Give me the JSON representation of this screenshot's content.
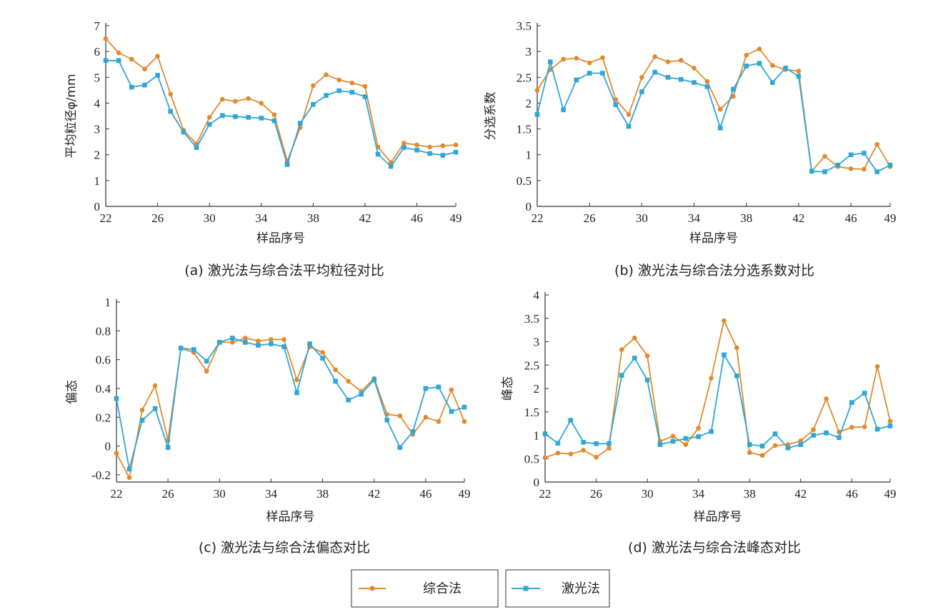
{
  "colors": {
    "comprehensive": "#e08a2c",
    "laser": "#2ea6d6"
  },
  "legend": {
    "comprehensive_label": "综合法",
    "laser_label": "激光法"
  },
  "chart_data": [
    {
      "type": "line",
      "caption": "(a) 激光法与综合法平均粒径对比",
      "ylabel": "平均粒径φ/mm",
      "xlabel": "样品序号",
      "xlim": [
        22,
        49
      ],
      "ylim": [
        0,
        7
      ],
      "xticks": [
        22,
        26,
        30,
        34,
        38,
        42,
        46,
        49
      ],
      "yticks": [
        0,
        1,
        2,
        3,
        4,
        5,
        6,
        7
      ],
      "ytick_labels": [
        "0",
        "1",
        "2",
        "3",
        "4",
        "5",
        "6",
        "7"
      ],
      "x": [
        22,
        23,
        24,
        25,
        26,
        27,
        28,
        29,
        30,
        31,
        32,
        33,
        34,
        35,
        36,
        37,
        38,
        39,
        40,
        41,
        42,
        43,
        44,
        45,
        46,
        47,
        48,
        49
      ],
      "series": [
        {
          "name": "综合法",
          "key": "comprehensive",
          "values": [
            6.5,
            5.95,
            5.7,
            5.32,
            5.82,
            4.35,
            2.95,
            2.42,
            3.45,
            4.15,
            4.07,
            4.18,
            4.0,
            3.55,
            1.75,
            3.05,
            4.68,
            5.1,
            4.9,
            4.78,
            4.65,
            2.3,
            1.7,
            2.45,
            2.38,
            2.3,
            2.35,
            2.38
          ]
        },
        {
          "name": "激光法",
          "key": "laser",
          "values": [
            5.65,
            5.65,
            4.62,
            4.7,
            5.08,
            3.68,
            2.88,
            2.28,
            3.18,
            3.52,
            3.48,
            3.45,
            3.42,
            3.32,
            1.62,
            3.22,
            3.95,
            4.3,
            4.48,
            4.42,
            4.25,
            2.02,
            1.55,
            2.28,
            2.18,
            2.05,
            1.98,
            2.1
          ]
        }
      ]
    },
    {
      "type": "line",
      "caption": "(b) 激光法与综合法分选系数对比",
      "ylabel": "分选系数",
      "xlabel": "样品序号",
      "xlim": [
        22,
        49
      ],
      "ylim": [
        0,
        3.5
      ],
      "xticks": [
        22,
        26,
        30,
        34,
        38,
        42,
        46,
        49
      ],
      "yticks": [
        0,
        0.5,
        1,
        1.5,
        2,
        2.5,
        3,
        3.5
      ],
      "ytick_labels": [
        "0",
        "0.5",
        "1",
        "1.5",
        "2",
        "2.5",
        "3",
        "3.5"
      ],
      "x": [
        22,
        23,
        24,
        25,
        26,
        27,
        28,
        29,
        30,
        31,
        32,
        33,
        34,
        35,
        36,
        37,
        38,
        39,
        40,
        41,
        42,
        43,
        44,
        45,
        46,
        47,
        48,
        49
      ],
      "series": [
        {
          "name": "综合法",
          "key": "comprehensive",
          "values": [
            2.25,
            2.65,
            2.85,
            2.87,
            2.78,
            2.88,
            2.07,
            1.78,
            2.5,
            2.9,
            2.8,
            2.83,
            2.68,
            2.42,
            1.88,
            2.13,
            2.93,
            3.05,
            2.73,
            2.65,
            2.62,
            0.68,
            0.97,
            0.77,
            0.73,
            0.72,
            1.2,
            0.77
          ]
        },
        {
          "name": "激光法",
          "key": "laser",
          "values": [
            1.78,
            2.8,
            1.87,
            2.45,
            2.58,
            2.58,
            1.97,
            1.55,
            2.22,
            2.6,
            2.5,
            2.46,
            2.4,
            2.32,
            1.52,
            2.27,
            2.72,
            2.77,
            2.4,
            2.68,
            2.52,
            0.68,
            0.67,
            0.8,
            1.0,
            1.03,
            0.67,
            0.8
          ]
        }
      ]
    },
    {
      "type": "line",
      "caption": "(c) 激光法与综合法偏态对比",
      "ylabel": "偏态",
      "xlabel": "样品序号",
      "xlim": [
        22,
        49
      ],
      "ylim": [
        -0.25,
        1
      ],
      "xticks": [
        22,
        26,
        30,
        34,
        38,
        42,
        46,
        49
      ],
      "yticks": [
        -0.2,
        0,
        0.2,
        0.4,
        0.6,
        0.8,
        1
      ],
      "ytick_labels": [
        "-0.2",
        "0",
        "0.2",
        "0.4",
        "0.6",
        "0.8",
        "1"
      ],
      "x": [
        22,
        23,
        24,
        25,
        26,
        27,
        28,
        29,
        30,
        31,
        32,
        33,
        34,
        35,
        36,
        37,
        38,
        39,
        40,
        41,
        42,
        43,
        44,
        45,
        46,
        47,
        48,
        49
      ],
      "series": [
        {
          "name": "综合法",
          "key": "comprehensive",
          "values": [
            -0.05,
            -0.22,
            0.25,
            0.42,
            0.04,
            0.68,
            0.65,
            0.52,
            0.72,
            0.72,
            0.75,
            0.73,
            0.74,
            0.74,
            0.46,
            0.69,
            0.65,
            0.53,
            0.45,
            0.38,
            0.47,
            0.22,
            0.21,
            0.08,
            0.2,
            0.17,
            0.39,
            0.17
          ]
        },
        {
          "name": "激光法",
          "key": "laser",
          "values": [
            0.33,
            -0.16,
            0.18,
            0.26,
            -0.01,
            0.68,
            0.67,
            0.59,
            0.72,
            0.75,
            0.72,
            0.7,
            0.71,
            0.69,
            0.37,
            0.71,
            0.61,
            0.45,
            0.32,
            0.36,
            0.46,
            0.18,
            -0.01,
            0.1,
            0.4,
            0.41,
            0.24,
            0.27
          ]
        }
      ]
    },
    {
      "type": "line",
      "caption": "(d) 激光法与综合法峰态对比",
      "ylabel": "峰态",
      "xlabel": "样品序号",
      "xlim": [
        22,
        49
      ],
      "ylim": [
        0,
        4
      ],
      "xticks": [
        22,
        26,
        30,
        34,
        38,
        42,
        46,
        49
      ],
      "yticks": [
        0,
        0.5,
        1,
        1.5,
        2,
        2.5,
        3,
        3.5,
        4
      ],
      "ytick_labels": [
        "0",
        "0.5",
        "1",
        "1.5",
        "2",
        "2.5",
        "3",
        "3.5",
        "4"
      ],
      "x": [
        22,
        23,
        24,
        25,
        26,
        27,
        28,
        29,
        30,
        31,
        32,
        33,
        34,
        35,
        36,
        37,
        38,
        39,
        40,
        41,
        42,
        43,
        44,
        45,
        46,
        47,
        48,
        49
      ],
      "series": [
        {
          "name": "综合法",
          "key": "comprehensive",
          "values": [
            0.52,
            0.62,
            0.6,
            0.68,
            0.53,
            0.72,
            2.83,
            3.08,
            2.7,
            0.87,
            0.98,
            0.8,
            1.15,
            2.22,
            3.45,
            2.87,
            0.63,
            0.57,
            0.78,
            0.8,
            0.88,
            1.12,
            1.78,
            1.07,
            1.17,
            1.18,
            2.47,
            1.3
          ]
        },
        {
          "name": "激光法",
          "key": "laser",
          "values": [
            1.03,
            0.83,
            1.32,
            0.85,
            0.82,
            0.82,
            2.28,
            2.65,
            2.18,
            0.8,
            0.87,
            0.93,
            0.97,
            1.08,
            2.72,
            2.27,
            0.8,
            0.77,
            1.03,
            0.73,
            0.8,
            1.0,
            1.05,
            0.95,
            1.7,
            1.9,
            1.13,
            1.2
          ]
        }
      ]
    }
  ]
}
